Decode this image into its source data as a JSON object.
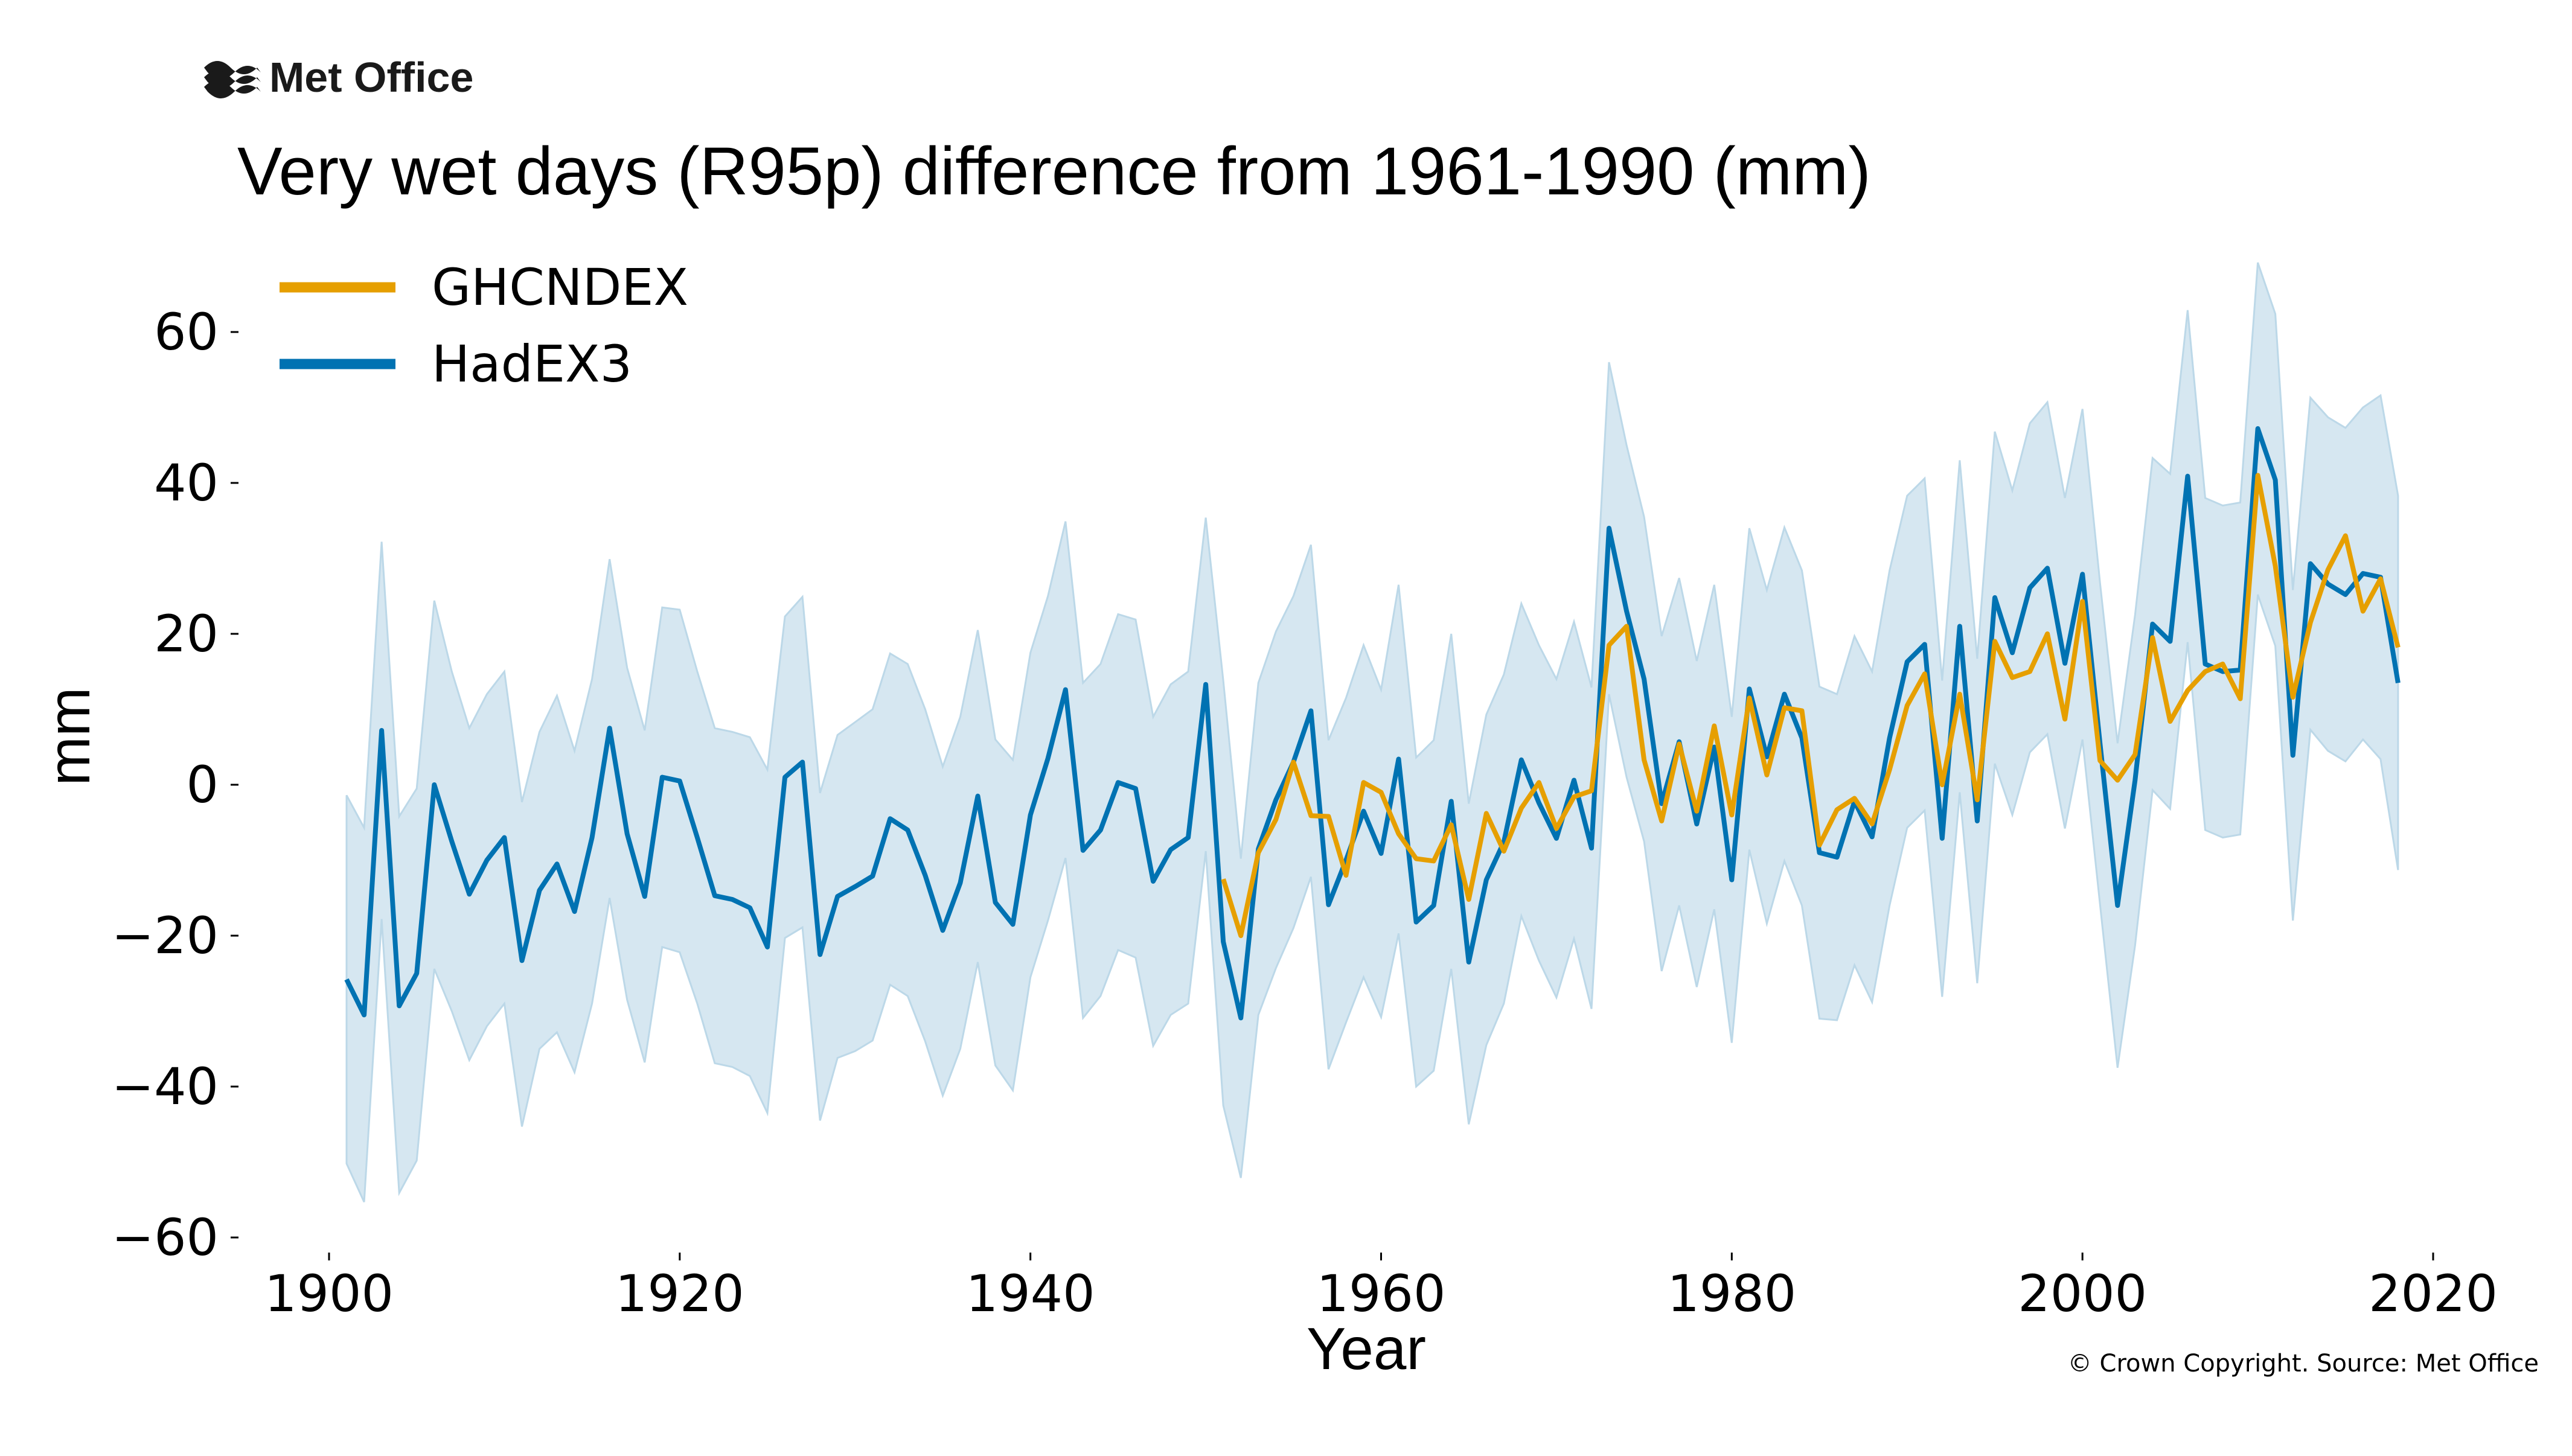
{
  "logo": {
    "text": "Met Office",
    "icon": "met-office-waves-icon"
  },
  "copyright": "© Crown Copyright. Source: Met Office",
  "colors": {
    "ghcndex": "#E69F00",
    "hadex3": "#0072B2",
    "band": "#D6E7F1",
    "band_edge": "#BCD8E8",
    "text": "#000000"
  },
  "chart_data": {
    "type": "line",
    "title": "Very wet days (R95p) difference from 1961-1990 (mm)",
    "xlabel": "Year",
    "ylabel": "mm",
    "xlim": [
      1897,
      2025
    ],
    "ylim": [
      -62,
      72
    ],
    "x_ticks": [
      1900,
      1920,
      1940,
      1960,
      1980,
      2000,
      2020
    ],
    "x_tick_labels": [
      "1900",
      "1920",
      "1940",
      "1960",
      "1980",
      "2000",
      "2020"
    ],
    "y_ticks": [
      -60,
      -40,
      -20,
      0,
      20,
      40,
      60
    ],
    "y_tick_labels": [
      "−60",
      "−40",
      "−20",
      "0",
      "20",
      "40",
      "60"
    ],
    "legend": {
      "placement": "top-left",
      "entries": [
        "GHCNDEX",
        "HadEX3"
      ]
    },
    "grid": false,
    "series": [
      {
        "name": "HadEX3",
        "x_start": 1901,
        "values": [
          -25.8,
          -30.5,
          7.2,
          -29.3,
          -25,
          0,
          -7.5,
          -14.5,
          -10,
          -7,
          -23.3,
          -14,
          -10.5,
          -16.8,
          -7,
          7.5,
          -6.5,
          -14.8,
          1,
          0.5,
          -7,
          -14.7,
          -15.2,
          -16.3,
          -21.5,
          1,
          3,
          -22.5,
          -14.8,
          -13.5,
          -12.1,
          -4.5,
          -6,
          -12,
          -19.3,
          -13,
          -1.5,
          -15.6,
          -18.5,
          -4,
          3.5,
          12.6,
          -8.7,
          -6,
          0.3,
          -0.5,
          -12.8,
          -8.6,
          -7,
          13.3,
          -20.8,
          -30.9,
          -8.5,
          -2,
          3,
          9.8,
          -15.9,
          -10,
          -3.5,
          -9.1,
          3.4,
          -18.2,
          -16,
          -2.2,
          -23.5,
          -12.6,
          -7.6,
          3.3,
          -2.4,
          -7.1,
          0.6,
          -8.4,
          34,
          23,
          14,
          -2.5,
          5.7,
          -5.2,
          5,
          -12.6,
          12.7,
          3.7,
          12,
          6.2,
          -9,
          -9.6,
          -2.2,
          -6.9,
          6.2,
          16.3,
          18.6,
          -7.1,
          21,
          -4.8,
          24.8,
          17.5,
          26.1,
          28.7,
          16.1,
          27.9,
          5.5,
          -16,
          0.6,
          21.3,
          19,
          40.9,
          16,
          15,
          15.2,
          47.2,
          40.4,
          3.9,
          29.3,
          26.6,
          25.2,
          28,
          27.5,
          13.5
        ]
      },
      {
        "name": "GHCNDEX",
        "x_start": 1951,
        "values": [
          -12.5,
          -20,
          -9,
          -4.6,
          3,
          -4.1,
          -4.2,
          -12,
          0.3,
          -1,
          -6.5,
          -9.8,
          -10.1,
          -5.3,
          -15.2,
          -3.8,
          -8.8,
          -3.1,
          0.3,
          -5.8,
          -1.6,
          -0.8,
          18.5,
          21,
          3.3,
          -4.8,
          5.4,
          -3.5,
          7.8,
          -4,
          11.5,
          1.3,
          10.2,
          9.8,
          -8,
          -3.3,
          -1.8,
          -5.2,
          2,
          10.5,
          14.7,
          0,
          12,
          -2,
          19,
          14.2,
          15,
          20,
          8.7,
          24.3,
          3.2,
          0.6,
          4,
          19.5,
          8.4,
          12.5,
          15,
          16,
          11.4,
          41,
          29,
          11.6,
          21.5,
          28.5,
          33,
          23,
          27.3,
          18.2
        ]
      }
    ],
    "band": {
      "x_start": 1901,
      "upper": [
        -1.4,
        -5.7,
        32.2,
        -4.2,
        -0.5,
        24.4,
        15,
        7.5,
        12,
        15,
        -2.3,
        7,
        11.8,
        4.5,
        14,
        29.9,
        15.5,
        7.2,
        23.5,
        23.2,
        15,
        7.5,
        7,
        6.3,
        2,
        22.3,
        24.9,
        -1.1,
        6.6,
        8.3,
        10,
        17.4,
        16,
        10,
        2.4,
        9,
        20.5,
        6,
        3.3,
        17.5,
        25,
        34.9,
        13.5,
        16,
        22.6,
        21.9,
        9,
        13.3,
        15,
        35.4,
        13.8,
        -9.8,
        13.5,
        20.3,
        25,
        31.8,
        5.9,
        11.5,
        18.5,
        12.6,
        26.5,
        3.6,
        5.9,
        20,
        -2.5,
        9.3,
        14.6,
        24,
        18.5,
        14,
        21.6,
        12.9,
        56,
        45,
        35.5,
        19.7,
        27.4,
        16.4,
        26.5,
        9,
        34,
        25.8,
        34.1,
        28.4,
        13,
        12,
        19.7,
        15,
        28.4,
        38.3,
        40.6,
        13.8,
        43,
        16.7,
        46.8,
        39,
        47.9,
        50.7,
        38,
        49.8,
        26.8,
        5.5,
        22.5,
        43.3,
        41.2,
        62.9,
        38,
        37,
        37.4,
        69.2,
        62.4,
        25.8,
        51.3,
        48.7,
        47.3,
        50,
        51.6,
        38.3
      ],
      "lower": [
        -50.2,
        -55.3,
        -17.8,
        -54.1,
        -49.8,
        -24.4,
        -30,
        -36.5,
        -32,
        -29,
        -45.3,
        -35,
        -32.8,
        -38.1,
        -29,
        -15,
        -28.5,
        -36.8,
        -21.5,
        -22.2,
        -29,
        -36.9,
        -37.4,
        -38.6,
        -43.5,
        -20.3,
        -18.9,
        -44.5,
        -36.2,
        -35.3,
        -33.9,
        -26.5,
        -28,
        -34,
        -41.2,
        -35,
        -23.5,
        -37.2,
        -40.5,
        -25.5,
        -18,
        -9.7,
        -30.9,
        -28,
        -21.9,
        -22.9,
        -34.6,
        -30.5,
        -29,
        -8.8,
        -42.5,
        -52.1,
        -30.5,
        -24.3,
        -19,
        -12.2,
        -37.7,
        -31.5,
        -25.5,
        -30.8,
        -19.7,
        -40,
        -37.9,
        -24.4,
        -45,
        -34.5,
        -29,
        -17.4,
        -23.3,
        -28.2,
        -20.4,
        -29.7,
        12,
        1,
        -7.5,
        -24.7,
        -16,
        -26.8,
        -16.5,
        -34.2,
        -8.6,
        -18.4,
        -10.1,
        -16,
        -31,
        -31.2,
        -23.9,
        -28.8,
        -16,
        -5.7,
        -3.4,
        -28.1,
        -1,
        -26.3,
        2.8,
        -4,
        4.3,
        6.7,
        -5.8,
        6,
        -15.8,
        -37.5,
        -21.3,
        -0.7,
        -3.2,
        18.9,
        -6,
        -7,
        -6.6,
        25.2,
        18.4,
        -18,
        7.3,
        4.5,
        3.1,
        6,
        3.4,
        -11.3
      ]
    }
  }
}
